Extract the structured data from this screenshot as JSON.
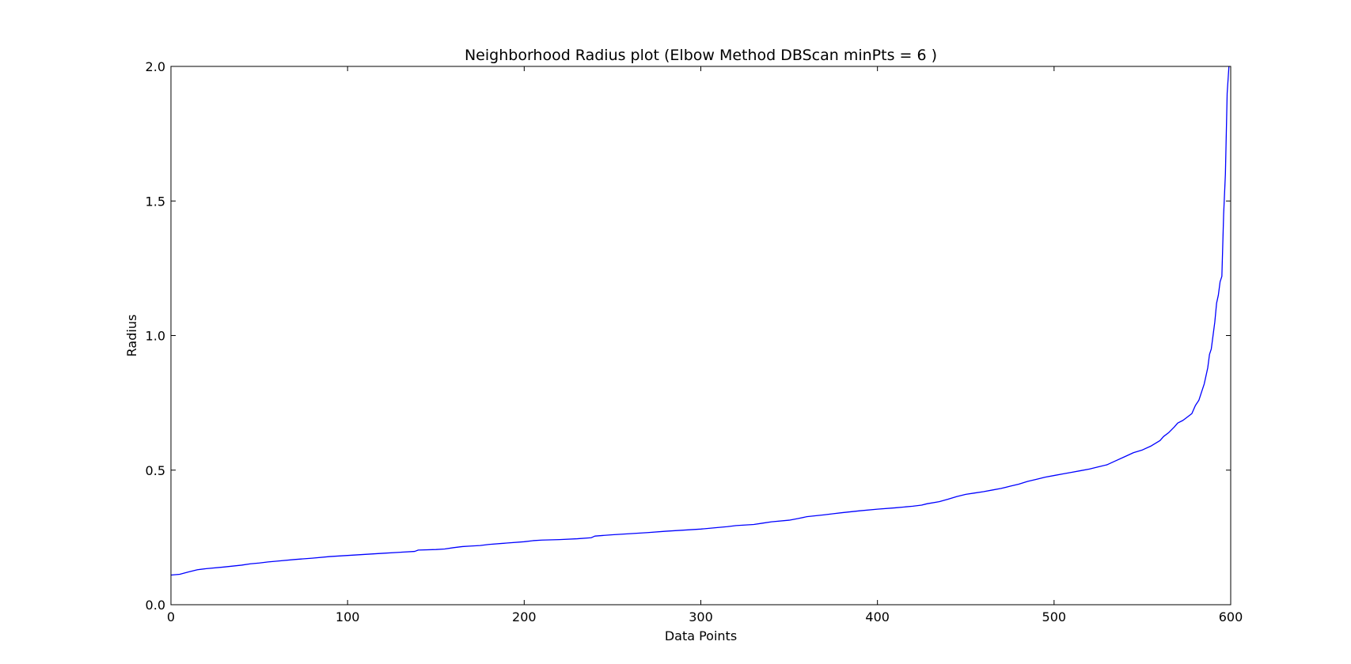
{
  "chart_data": {
    "type": "line",
    "title": "Neighborhood Radius plot (Elbow Method DBScan minPts = 6 )",
    "xlabel": "Data Points",
    "ylabel": "Radius",
    "xlim": [
      0,
      600
    ],
    "ylim": [
      0.0,
      2.0
    ],
    "xticks": [
      "0",
      "100",
      "200",
      "300",
      "400",
      "500",
      "600"
    ],
    "yticks": [
      "0.0",
      "0.5",
      "1.0",
      "1.5",
      "2.0"
    ],
    "grid": false,
    "legend": "none",
    "series": [
      {
        "color": "#0000ff",
        "x": [
          0,
          5,
          10,
          15,
          20,
          30,
          40,
          45,
          50,
          55,
          60,
          70,
          80,
          90,
          100,
          110,
          120,
          130,
          138,
          140,
          150,
          155,
          160,
          165,
          170,
          175,
          180,
          190,
          200,
          205,
          210,
          220,
          230,
          238,
          240,
          250,
          260,
          270,
          280,
          290,
          300,
          310,
          315,
          320,
          330,
          335,
          340,
          350,
          355,
          360,
          370,
          375,
          380,
          390,
          400,
          410,
          420,
          425,
          428,
          435,
          440,
          445,
          450,
          455,
          460,
          465,
          470,
          475,
          480,
          485,
          490,
          495,
          500,
          505,
          510,
          515,
          520,
          525,
          530,
          535,
          540,
          545,
          550,
          555,
          560,
          562,
          565,
          568,
          570,
          573,
          575,
          578,
          580,
          582,
          584,
          585,
          586,
          587,
          588,
          589,
          590,
          591,
          592,
          593,
          594,
          595,
          596,
          597,
          598,
          599
        ],
        "y": [
          0.11,
          0.113,
          0.122,
          0.13,
          0.134,
          0.14,
          0.147,
          0.152,
          0.155,
          0.159,
          0.162,
          0.168,
          0.173,
          0.179,
          0.183,
          0.187,
          0.191,
          0.195,
          0.198,
          0.203,
          0.205,
          0.207,
          0.212,
          0.216,
          0.218,
          0.22,
          0.224,
          0.229,
          0.234,
          0.238,
          0.24,
          0.242,
          0.245,
          0.249,
          0.255,
          0.26,
          0.264,
          0.268,
          0.273,
          0.277,
          0.281,
          0.287,
          0.29,
          0.294,
          0.298,
          0.303,
          0.308,
          0.314,
          0.32,
          0.327,
          0.334,
          0.338,
          0.342,
          0.349,
          0.355,
          0.36,
          0.366,
          0.37,
          0.375,
          0.383,
          0.392,
          0.402,
          0.41,
          0.415,
          0.42,
          0.426,
          0.432,
          0.44,
          0.448,
          0.458,
          0.466,
          0.474,
          0.48,
          0.486,
          0.492,
          0.498,
          0.504,
          0.512,
          0.52,
          0.535,
          0.55,
          0.565,
          0.575,
          0.59,
          0.61,
          0.625,
          0.64,
          0.66,
          0.675,
          0.685,
          0.695,
          0.71,
          0.74,
          0.76,
          0.8,
          0.82,
          0.85,
          0.88,
          0.93,
          0.95,
          1.0,
          1.05,
          1.12,
          1.15,
          1.2,
          1.22,
          1.45,
          1.6,
          1.9,
          2.0
        ]
      }
    ]
  }
}
